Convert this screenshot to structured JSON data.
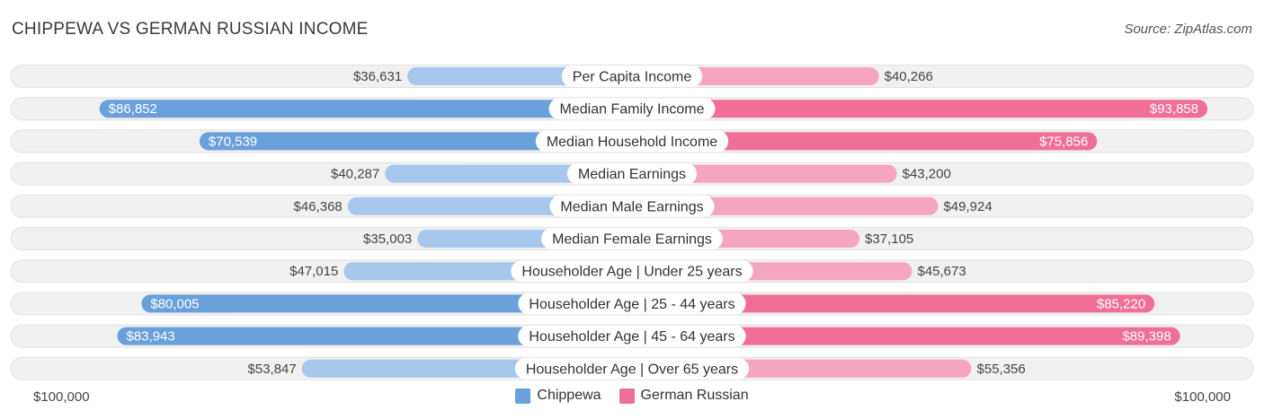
{
  "title": "CHIPPEWA VS GERMAN RUSSIAN INCOME",
  "source": "Source: ZipAtlas.com",
  "colors": {
    "left_strong": "#6aa0dc",
    "left_light": "#a7c7ec",
    "right_strong": "#f06f97",
    "right_light": "#f6a5c0",
    "row_bg": "#f1f1f1"
  },
  "chart_data": {
    "type": "bar",
    "orientation": "horizontal-diverging",
    "title": "CHIPPEWA VS GERMAN RUSSIAN INCOME",
    "categories": [
      "Per Capita Income",
      "Median Family Income",
      "Median Household Income",
      "Median Earnings",
      "Median Male Earnings",
      "Median Female Earnings",
      "Householder Age | Under 25 years",
      "Householder Age | 25 - 44 years",
      "Householder Age | 45 - 64 years",
      "Householder Age | Over 65 years"
    ],
    "series": [
      {
        "name": "Chippewa",
        "values": [
          36631,
          86852,
          70539,
          40287,
          46368,
          35003,
          47015,
          80005,
          83943,
          53847
        ],
        "labels": [
          "$36,631",
          "$86,852",
          "$70,539",
          "$40,287",
          "$46,368",
          "$35,003",
          "$47,015",
          "$80,005",
          "$83,943",
          "$53,847"
        ]
      },
      {
        "name": "German Russian",
        "values": [
          40266,
          93858,
          75856,
          43200,
          49924,
          37105,
          45673,
          85220,
          89398,
          55356
        ],
        "labels": [
          "$40,266",
          "$93,858",
          "$75,856",
          "$43,200",
          "$49,924",
          "$37,105",
          "$45,673",
          "$85,220",
          "$89,398",
          "$55,356"
        ]
      }
    ],
    "xlim": [
      0,
      100000
    ],
    "axis_labels": {
      "left": "$100,000",
      "right": "$100,000"
    },
    "legend_position": "bottom-center"
  }
}
